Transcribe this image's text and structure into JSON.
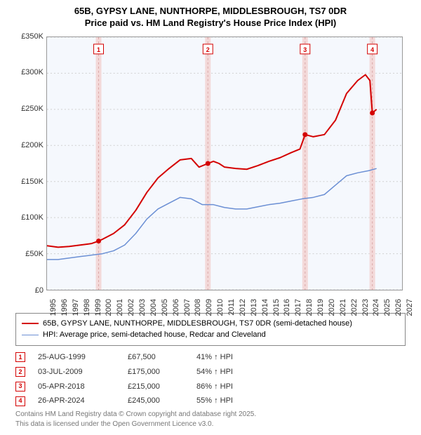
{
  "title": {
    "line1": "65B, GYPSY LANE, NUNTHORPE, MIDDLESBROUGH, TS7 0DR",
    "line2": "Price paid vs. HM Land Registry's House Price Index (HPI)"
  },
  "chart": {
    "type": "line",
    "background_color": "#f5f8fd",
    "grid_color": "#d0d0d0",
    "border_color": "#999999",
    "x": {
      "min": 1995,
      "max": 2027,
      "ticks": [
        1995,
        1996,
        1997,
        1998,
        1999,
        2000,
        2001,
        2002,
        2003,
        2004,
        2005,
        2006,
        2007,
        2008,
        2009,
        2010,
        2011,
        2012,
        2013,
        2014,
        2015,
        2016,
        2017,
        2018,
        2019,
        2020,
        2021,
        2022,
        2023,
        2024,
        2025,
        2026,
        2027
      ],
      "label_fontsize": 11
    },
    "y": {
      "min": 0,
      "max": 350000,
      "ticks": [
        0,
        50000,
        100000,
        150000,
        200000,
        250000,
        300000,
        350000
      ],
      "tick_labels": [
        "£0",
        "£50K",
        "£100K",
        "£150K",
        "£200K",
        "£250K",
        "£300K",
        "£350K"
      ],
      "label_fontsize": 11
    },
    "series": [
      {
        "name": "65B, GYPSY LANE, NUNTHORPE, MIDDLESBROUGH, TS7 0DR (semi-detached house)",
        "color": "#d40000",
        "line_width": 2,
        "points": [
          [
            1995.0,
            61000
          ],
          [
            1996.0,
            59000
          ],
          [
            1997.0,
            60000
          ],
          [
            1998.0,
            62000
          ],
          [
            1999.0,
            64000
          ],
          [
            1999.65,
            67500
          ],
          [
            2000.0,
            70000
          ],
          [
            2001.0,
            78000
          ],
          [
            2002.0,
            90000
          ],
          [
            2003.0,
            110000
          ],
          [
            2004.0,
            135000
          ],
          [
            2005.0,
            155000
          ],
          [
            2006.0,
            168000
          ],
          [
            2007.0,
            180000
          ],
          [
            2008.0,
            182000
          ],
          [
            2008.7,
            170000
          ],
          [
            2009.5,
            175000
          ],
          [
            2010.0,
            178000
          ],
          [
            2010.5,
            175000
          ],
          [
            2011.0,
            170000
          ],
          [
            2012.0,
            168000
          ],
          [
            2013.0,
            167000
          ],
          [
            2014.0,
            172000
          ],
          [
            2015.0,
            178000
          ],
          [
            2016.0,
            183000
          ],
          [
            2017.0,
            190000
          ],
          [
            2017.8,
            195000
          ],
          [
            2018.26,
            215000
          ],
          [
            2019.0,
            212000
          ],
          [
            2020.0,
            215000
          ],
          [
            2021.0,
            235000
          ],
          [
            2022.0,
            272000
          ],
          [
            2023.0,
            290000
          ],
          [
            2023.7,
            298000
          ],
          [
            2024.1,
            290000
          ],
          [
            2024.32,
            245000
          ],
          [
            2024.7,
            250000
          ]
        ]
      },
      {
        "name": "HPI: Average price, semi-detached house, Redcar and Cleveland",
        "color": "#6b8fd4",
        "line_width": 1.5,
        "points": [
          [
            1995.0,
            42000
          ],
          [
            1996.0,
            42000
          ],
          [
            1997.0,
            44000
          ],
          [
            1998.0,
            46000
          ],
          [
            1999.0,
            48000
          ],
          [
            2000.0,
            50000
          ],
          [
            2001.0,
            54000
          ],
          [
            2002.0,
            62000
          ],
          [
            2003.0,
            78000
          ],
          [
            2004.0,
            98000
          ],
          [
            2005.0,
            112000
          ],
          [
            2006.0,
            120000
          ],
          [
            2007.0,
            128000
          ],
          [
            2008.0,
            126000
          ],
          [
            2009.0,
            118000
          ],
          [
            2010.0,
            118000
          ],
          [
            2011.0,
            114000
          ],
          [
            2012.0,
            112000
          ],
          [
            2013.0,
            112000
          ],
          [
            2014.0,
            115000
          ],
          [
            2015.0,
            118000
          ],
          [
            2016.0,
            120000
          ],
          [
            2017.0,
            123000
          ],
          [
            2018.0,
            126000
          ],
          [
            2019.0,
            128000
          ],
          [
            2020.0,
            132000
          ],
          [
            2021.0,
            145000
          ],
          [
            2022.0,
            158000
          ],
          [
            2023.0,
            162000
          ],
          [
            2024.0,
            165000
          ],
          [
            2024.7,
            168000
          ]
        ]
      }
    ],
    "markers": [
      {
        "n": "1",
        "x": 1999.65,
        "y": 67500,
        "color": "#d40000"
      },
      {
        "n": "2",
        "x": 2009.5,
        "y": 175000,
        "color": "#d40000"
      },
      {
        "n": "3",
        "x": 2018.26,
        "y": 215000,
        "color": "#d40000"
      },
      {
        "n": "4",
        "x": 2024.32,
        "y": 245000,
        "color": "#d40000"
      }
    ],
    "marker_band_color": "#f3d9d9",
    "marker_line_color": "#d9a7a7"
  },
  "legend": {
    "items": [
      {
        "color": "#d40000",
        "width": 2,
        "label": "65B, GYPSY LANE, NUNTHORPE, MIDDLESBROUGH, TS7 0DR (semi-detached house)"
      },
      {
        "color": "#6b8fd4",
        "width": 1.5,
        "label": "HPI: Average price, semi-detached house, Redcar and Cleveland"
      }
    ]
  },
  "sales": [
    {
      "n": "1",
      "date": "25-AUG-1999",
      "price": "£67,500",
      "delta": "41% ↑ HPI"
    },
    {
      "n": "2",
      "date": "03-JUL-2009",
      "price": "£175,000",
      "delta": "54% ↑ HPI"
    },
    {
      "n": "3",
      "date": "05-APR-2018",
      "price": "£215,000",
      "delta": "86% ↑ HPI"
    },
    {
      "n": "4",
      "date": "26-APR-2024",
      "price": "£245,000",
      "delta": "55% ↑ HPI"
    }
  ],
  "sales_marker_color": "#d40000",
  "footnote": {
    "line1": "Contains HM Land Registry data © Crown copyright and database right 2025.",
    "line2": "This data is licensed under the Open Government Licence v3.0."
  }
}
